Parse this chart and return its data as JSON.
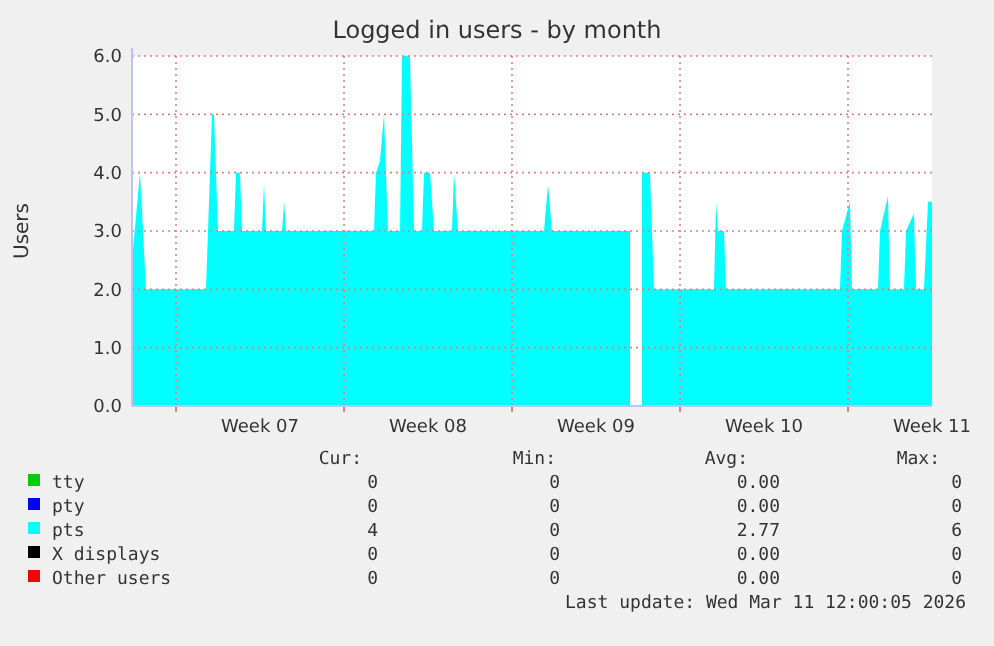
{
  "chart_data": {
    "type": "area",
    "title": "Logged in users - by month",
    "ylabel": "Users",
    "xlim": [
      "2026-02-06T04:00",
      "2026-03-11T12:00"
    ],
    "xticks": [
      {
        "value": "2026-02-08",
        "label": null
      },
      {
        "value": "2026-02-11T12:00",
        "label": "Week 07"
      },
      {
        "value": "2026-02-15",
        "label": null
      },
      {
        "value": "2026-02-18T12:00",
        "label": "Week 08"
      },
      {
        "value": "2026-02-22",
        "label": null
      },
      {
        "value": "2026-02-25T12:00",
        "label": "Week 09"
      },
      {
        "value": "2026-03-01",
        "label": null
      },
      {
        "value": "2026-03-04T12:00",
        "label": "Week 10"
      },
      {
        "value": "2026-03-08",
        "label": null
      },
      {
        "value": "2026-03-11T12:00",
        "label": "Week 11"
      }
    ],
    "ylim": [
      0,
      6
    ],
    "yticks": [
      {
        "value": 0,
        "label": "0.0"
      },
      {
        "value": 1,
        "label": "1.0"
      },
      {
        "value": 2,
        "label": "2.0"
      },
      {
        "value": 3,
        "label": "3.0"
      },
      {
        "value": 4,
        "label": "4.0"
      },
      {
        "value": 5,
        "label": "5.0"
      },
      {
        "value": 6,
        "label": "6.0"
      }
    ],
    "grid": true,
    "legend": "bottom",
    "series": [
      {
        "name": "tty",
        "color": "#00cc00"
      },
      {
        "name": "pty",
        "color": "#0000ff"
      },
      {
        "name": "pts",
        "color": "#00ffff",
        "x": [
          "2026-02-06T04:00",
          "2026-02-06T12:00",
          "2026-02-06T18:00",
          "2026-02-09T06:00",
          "2026-02-09T08:00",
          "2026-02-09T12:00",
          "2026-02-09T14:00",
          "2026-02-09T18:00",
          "2026-02-10T10:00",
          "2026-02-10T12:00",
          "2026-02-10T16:00",
          "2026-02-10T18:00",
          "2026-02-11T14:00",
          "2026-02-11T16:00",
          "2026-02-11T18:00",
          "2026-02-12T10:00",
          "2026-02-12T12:00",
          "2026-02-12T14:00",
          "2026-02-16T06:00",
          "2026-02-16T08:00",
          "2026-02-16T12:00",
          "2026-02-16T16:00",
          "2026-02-16T20:00",
          "2026-02-17T08:00",
          "2026-02-17T10:00",
          "2026-02-17T18:00",
          "2026-02-17T22:00",
          "2026-02-18T06:00",
          "2026-02-18T08:00",
          "2026-02-18T14:00",
          "2026-02-18T18:00",
          "2026-02-19T12:00",
          "2026-02-19T14:00",
          "2026-02-19T18:00",
          "2026-02-23T08:00",
          "2026-02-23T12:00",
          "2026-02-23T16:00",
          "2026-02-26T22:00",
          "2026-02-27T04:00",
          "2026-02-27T10:00",
          "2026-02-27T18:00",
          "2026-02-27T22:00",
          "2026-03-02T10:00",
          "2026-03-02T12:00",
          "2026-03-02T14:00",
          "2026-03-02T20:00",
          "2026-03-02T22:00",
          "2026-03-07T16:00",
          "2026-03-07T18:00",
          "2026-03-08T02:00",
          "2026-03-08T04:00",
          "2026-03-09T06:00",
          "2026-03-09T08:00",
          "2026-03-09T16:00",
          "2026-03-09T18:00",
          "2026-03-10T08:00",
          "2026-03-10T10:00",
          "2026-03-10T18:00",
          "2026-03-10T20:00",
          "2026-03-11T04:00",
          "2026-03-11T08:00",
          "2026-03-11T12:00"
        ],
        "values": [
          2.5,
          4,
          2,
          2,
          3,
          5,
          5,
          3,
          3,
          4,
          4,
          3,
          3,
          3.8,
          3,
          3,
          3.5,
          3,
          3,
          4,
          4.2,
          5,
          3,
          3,
          6,
          6,
          3,
          3,
          4,
          4,
          3,
          3,
          4,
          3,
          3,
          3.8,
          3,
          3,
          null,
          4,
          4,
          2,
          2,
          3.5,
          3,
          3,
          2,
          2,
          3,
          3.5,
          2,
          2,
          3,
          3.6,
          2,
          2,
          3,
          3.3,
          2,
          2,
          3.5,
          3.5
        ]
      },
      {
        "name": "X displays",
        "color": "#000000"
      },
      {
        "name": "Other users",
        "color": "#ff0000"
      }
    ],
    "annotations": [
      "Cur:",
      "Min:",
      "Avg:",
      "Max:",
      "0",
      "0",
      "0.00",
      "0",
      "0",
      "0",
      "0.00",
      "0",
      "4",
      "0",
      "2.77",
      "6",
      "0",
      "0",
      "0.00",
      "0",
      "0",
      "0",
      "0.00",
      "0",
      "Last update: Wed Mar 11 12:00:05 2026"
    ]
  }
}
